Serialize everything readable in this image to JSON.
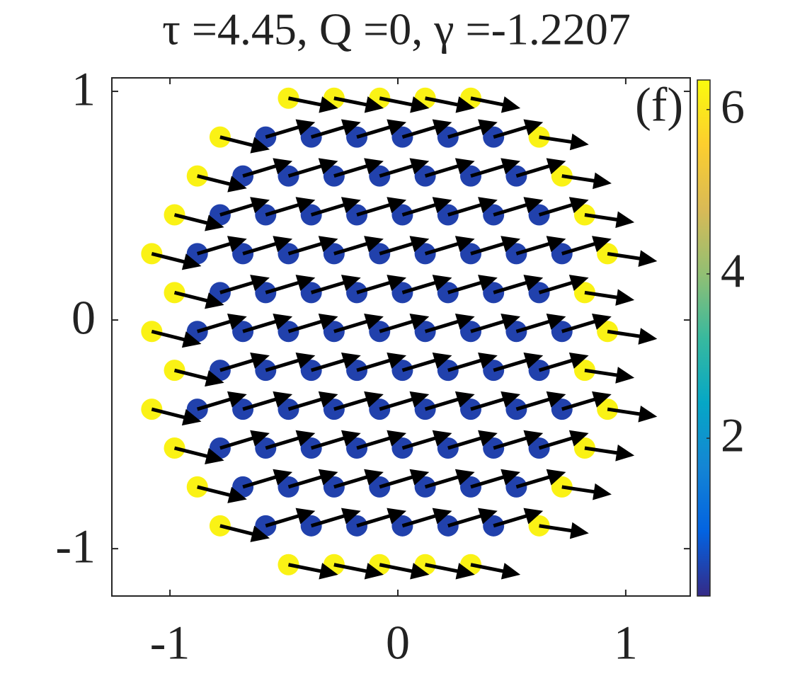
{
  "chart_data": {
    "type": "quiver-scatter",
    "title": "τ =4.45,  Q =0,  γ =-1.2207",
    "panel_label": "(f)",
    "xlim": [
      -1.255,
      1.283
    ],
    "ylim": [
      -1.207,
      1.059
    ],
    "xticks": [
      -1,
      0,
      1
    ],
    "yticks": [
      -1,
      0,
      1
    ],
    "colormap": "parula",
    "clim": [
      0.08,
      6.36
    ],
    "cticks": [
      2,
      4,
      6
    ],
    "arrow_color": "#000000",
    "x": [
      -0.48,
      -0.28,
      -0.08,
      0.12,
      0.32,
      -0.78,
      -0.58,
      -0.38,
      -0.18,
      0.02,
      0.22,
      0.42,
      0.62,
      -0.88,
      -0.68,
      -0.48,
      -0.28,
      -0.08,
      0.12,
      0.32,
      0.52,
      0.72,
      -0.98,
      -0.78,
      -0.58,
      -0.38,
      -0.18,
      0.02,
      0.22,
      0.42,
      0.62,
      0.82,
      -1.08,
      -0.88,
      -0.68,
      -0.48,
      -0.28,
      -0.08,
      0.12,
      0.32,
      0.52,
      0.72,
      0.92,
      -0.98,
      -0.78,
      -0.58,
      -0.38,
      -0.18,
      0.02,
      0.22,
      0.42,
      0.62,
      0.82,
      -1.08,
      -0.88,
      -0.68,
      -0.48,
      -0.28,
      -0.08,
      0.12,
      0.32,
      0.52,
      0.72,
      0.92,
      -0.98,
      -0.78,
      -0.58,
      -0.38,
      -0.18,
      0.02,
      0.22,
      0.42,
      0.62,
      0.82,
      -1.08,
      -0.88,
      -0.68,
      -0.48,
      -0.28,
      -0.08,
      0.12,
      0.32,
      0.52,
      0.72,
      0.92,
      -0.98,
      -0.78,
      -0.58,
      -0.38,
      -0.18,
      0.02,
      0.22,
      0.42,
      0.62,
      0.82,
      -0.88,
      -0.68,
      -0.48,
      -0.28,
      -0.08,
      0.12,
      0.32,
      0.52,
      0.72,
      -0.78,
      -0.58,
      -0.38,
      -0.18,
      0.02,
      0.22,
      0.42,
      0.62,
      -0.48,
      -0.28,
      -0.08,
      0.12,
      0.32
    ],
    "y": [
      0.97,
      0.97,
      0.97,
      0.97,
      0.97,
      0.8,
      0.8,
      0.8,
      0.8,
      0.8,
      0.8,
      0.8,
      0.8,
      0.63,
      0.63,
      0.63,
      0.63,
      0.63,
      0.63,
      0.63,
      0.63,
      0.63,
      0.46,
      0.46,
      0.46,
      0.46,
      0.46,
      0.46,
      0.46,
      0.46,
      0.46,
      0.46,
      0.29,
      0.29,
      0.29,
      0.29,
      0.29,
      0.29,
      0.29,
      0.29,
      0.29,
      0.29,
      0.29,
      0.12,
      0.12,
      0.12,
      0.12,
      0.12,
      0.12,
      0.12,
      0.12,
      0.12,
      0.12,
      -0.05,
      -0.05,
      -0.05,
      -0.05,
      -0.05,
      -0.05,
      -0.05,
      -0.05,
      -0.05,
      -0.05,
      -0.05,
      -0.22,
      -0.22,
      -0.22,
      -0.22,
      -0.22,
      -0.22,
      -0.22,
      -0.22,
      -0.22,
      -0.22,
      -0.39,
      -0.39,
      -0.39,
      -0.39,
      -0.39,
      -0.39,
      -0.39,
      -0.39,
      -0.39,
      -0.39,
      -0.39,
      -0.56,
      -0.56,
      -0.56,
      -0.56,
      -0.56,
      -0.56,
      -0.56,
      -0.56,
      -0.56,
      -0.56,
      -0.73,
      -0.73,
      -0.73,
      -0.73,
      -0.73,
      -0.73,
      -0.73,
      -0.73,
      -0.73,
      -0.9,
      -0.9,
      -0.9,
      -0.9,
      -0.9,
      -0.9,
      -0.9,
      -0.9,
      -1.07,
      -1.07,
      -1.07,
      -1.07,
      -1.07
    ],
    "c": [
      6.2,
      6.2,
      6.2,
      6.2,
      6.2,
      6.2,
      0.4,
      0.4,
      0.4,
      0.4,
      0.4,
      0.4,
      6.2,
      6.2,
      0.4,
      0.4,
      0.4,
      0.4,
      0.4,
      0.4,
      0.4,
      6.2,
      6.2,
      0.4,
      0.4,
      0.4,
      0.4,
      0.4,
      0.4,
      0.4,
      0.4,
      6.2,
      6.2,
      0.4,
      0.4,
      0.4,
      0.4,
      0.4,
      0.4,
      0.4,
      0.4,
      0.4,
      6.2,
      6.2,
      0.4,
      0.4,
      0.4,
      0.4,
      0.4,
      0.4,
      0.4,
      0.4,
      6.2,
      6.2,
      0.4,
      0.4,
      0.4,
      0.4,
      0.4,
      0.4,
      0.4,
      0.4,
      0.4,
      6.2,
      6.2,
      0.4,
      0.4,
      0.4,
      0.4,
      0.4,
      0.4,
      0.4,
      0.4,
      6.2,
      6.2,
      0.4,
      0.4,
      0.4,
      0.4,
      0.4,
      0.4,
      0.4,
      0.4,
      0.4,
      6.2,
      6.2,
      0.4,
      0.4,
      0.4,
      0.4,
      0.4,
      0.4,
      0.4,
      0.4,
      6.2,
      6.2,
      0.4,
      0.4,
      0.4,
      0.4,
      0.4,
      0.4,
      0.4,
      6.2,
      6.2,
      0.4,
      0.4,
      0.4,
      0.4,
      0.4,
      0.4,
      6.2,
      6.2,
      6.2,
      6.2,
      6.2,
      6.2
    ],
    "u": [
      0.2,
      0.2,
      0.2,
      0.2,
      0.2,
      0.2,
      0.2,
      0.2,
      0.2,
      0.2,
      0.2,
      0.2,
      0.2,
      0.2,
      0.2,
      0.2,
      0.2,
      0.2,
      0.2,
      0.2,
      0.2,
      0.2,
      0.2,
      0.2,
      0.2,
      0.2,
      0.2,
      0.2,
      0.2,
      0.2,
      0.2,
      0.2,
      0.2,
      0.2,
      0.2,
      0.2,
      0.2,
      0.2,
      0.2,
      0.2,
      0.2,
      0.2,
      0.2,
      0.2,
      0.2,
      0.2,
      0.2,
      0.2,
      0.2,
      0.2,
      0.2,
      0.2,
      0.2,
      0.2,
      0.2,
      0.2,
      0.2,
      0.2,
      0.2,
      0.2,
      0.2,
      0.2,
      0.2,
      0.2,
      0.2,
      0.2,
      0.2,
      0.2,
      0.2,
      0.2,
      0.2,
      0.2,
      0.2,
      0.2,
      0.2,
      0.2,
      0.2,
      0.2,
      0.2,
      0.2,
      0.2,
      0.2,
      0.2,
      0.2,
      0.2,
      0.2,
      0.2,
      0.2,
      0.2,
      0.2,
      0.2,
      0.2,
      0.2,
      0.2,
      0.2,
      0.2,
      0.2,
      0.2,
      0.2,
      0.2,
      0.2,
      0.2,
      0.2,
      0.2,
      0.2,
      0.2,
      0.2,
      0.2,
      0.2,
      0.2,
      0.2,
      0.2,
      0.2,
      0.2,
      0.2,
      0.2,
      0.2
    ],
    "v": [
      -0.04,
      -0.04,
      -0.04,
      -0.04,
      -0.04,
      -0.05,
      0.06,
      0.06,
      0.06,
      0.06,
      0.06,
      0.06,
      -0.03,
      -0.05,
      0.06,
      0.06,
      0.06,
      0.06,
      0.06,
      0.06,
      0.06,
      -0.03,
      -0.05,
      0.06,
      0.06,
      0.06,
      0.06,
      0.06,
      0.06,
      0.06,
      0.06,
      -0.03,
      -0.05,
      0.06,
      0.06,
      0.06,
      0.06,
      0.06,
      0.06,
      0.06,
      0.06,
      0.06,
      -0.03,
      -0.05,
      0.06,
      0.06,
      0.06,
      0.06,
      0.06,
      0.06,
      0.06,
      0.06,
      -0.03,
      -0.05,
      0.06,
      0.06,
      0.06,
      0.06,
      0.06,
      0.06,
      0.06,
      0.06,
      0.06,
      -0.03,
      -0.05,
      0.06,
      0.06,
      0.06,
      0.06,
      0.06,
      0.06,
      0.06,
      0.06,
      -0.03,
      -0.05,
      0.06,
      0.06,
      0.06,
      0.06,
      0.06,
      0.06,
      0.06,
      0.06,
      0.06,
      -0.03,
      -0.05,
      0.06,
      0.06,
      0.06,
      0.06,
      0.06,
      0.06,
      0.06,
      0.06,
      -0.03,
      -0.05,
      0.06,
      0.06,
      0.06,
      0.06,
      0.06,
      0.06,
      0.06,
      -0.03,
      -0.05,
      0.06,
      0.06,
      0.06,
      0.06,
      0.06,
      0.06,
      -0.03,
      -0.04,
      -0.04,
      -0.04,
      -0.04,
      -0.04
    ]
  }
}
